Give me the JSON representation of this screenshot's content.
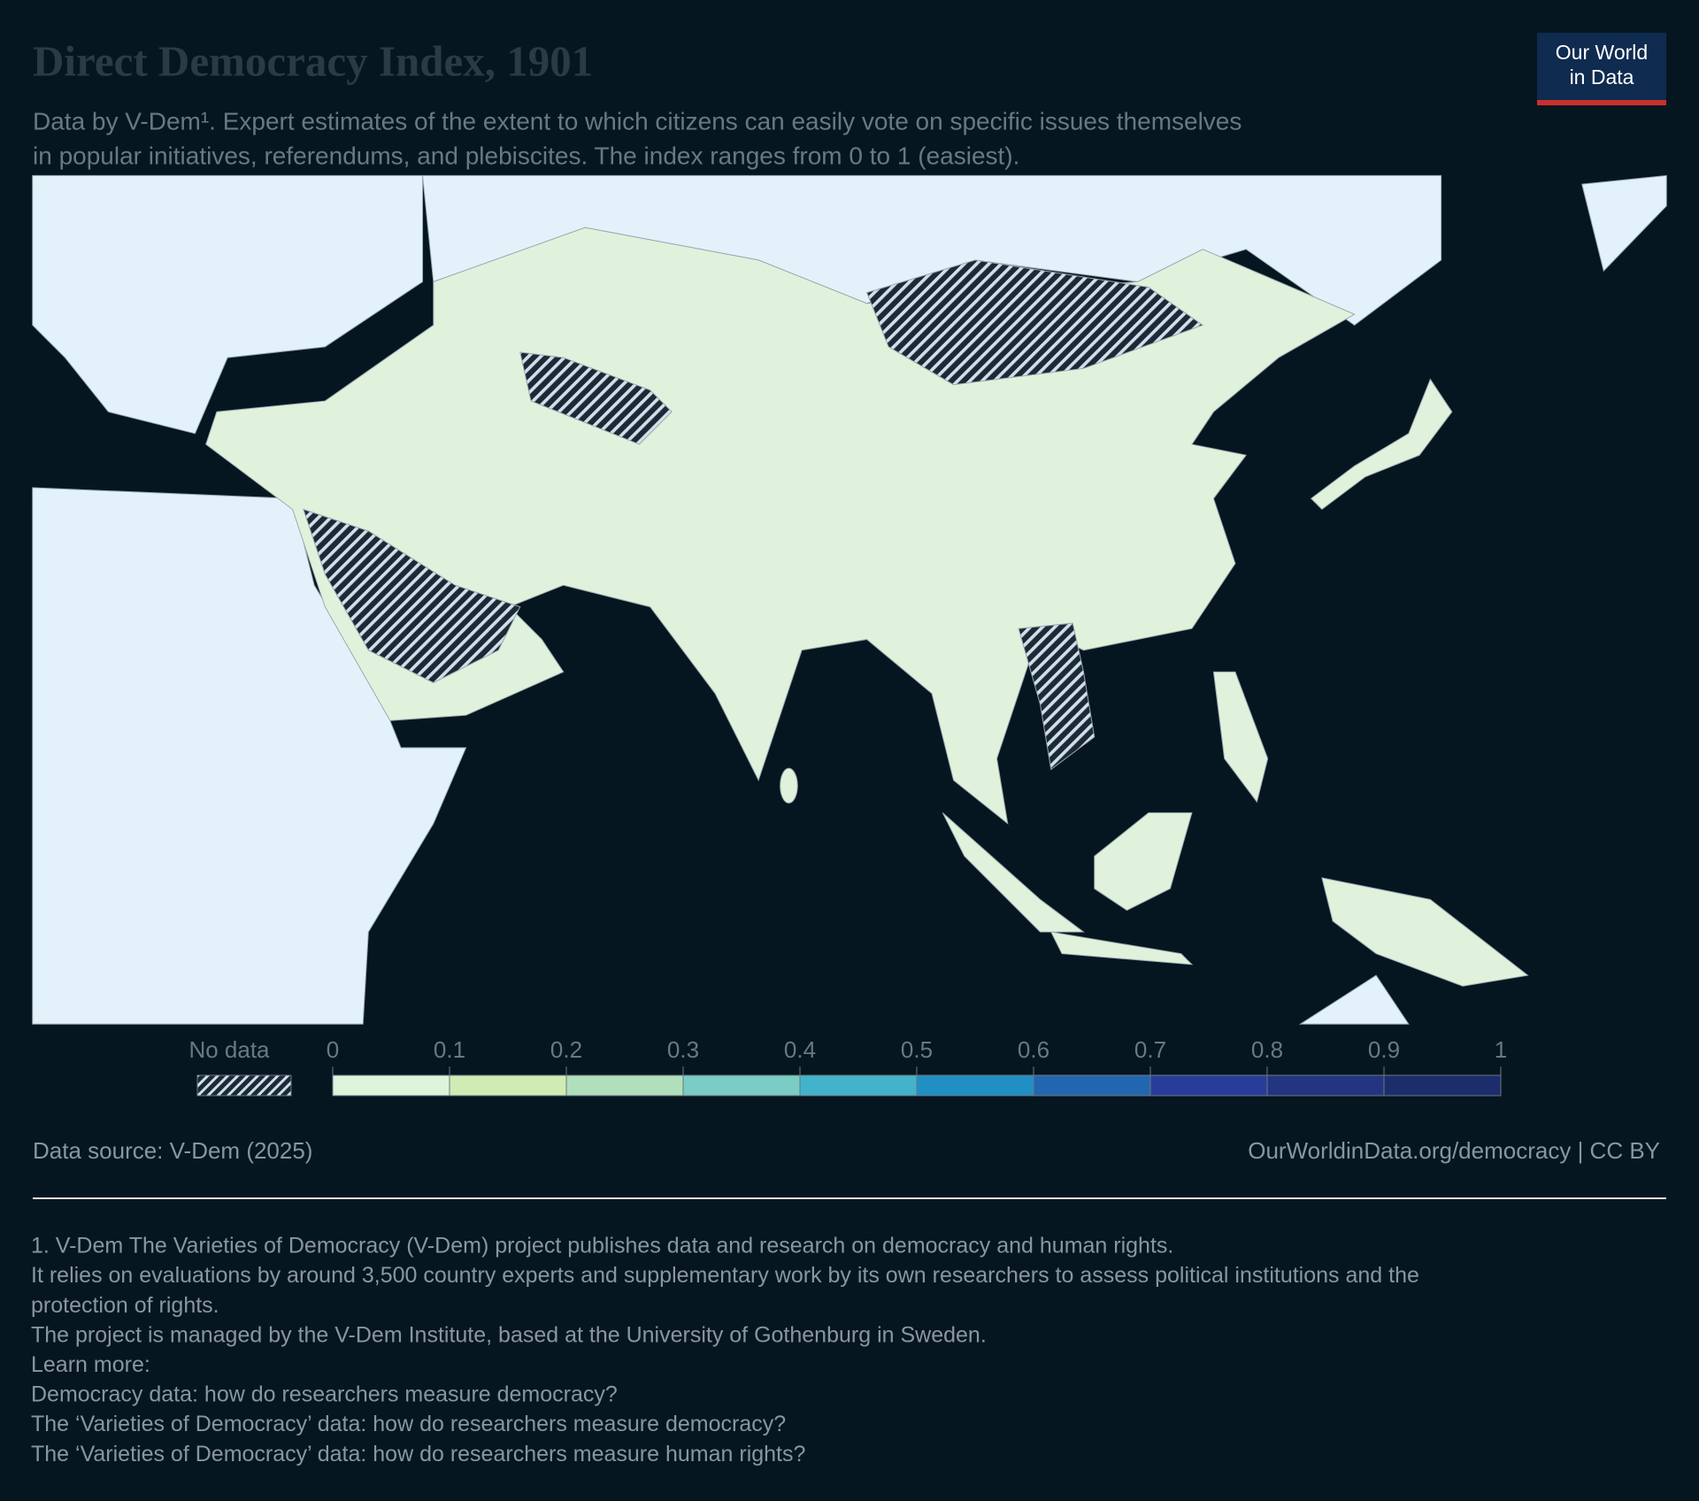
{
  "header": {
    "title": "Direct Democracy Index, 1901",
    "subtitle": [
      "Data by V-Dem¹. Expert estimates of the extent to which citizens can easily vote on specific issues themselves",
      "in popular initiatives, referendums, and plebiscites. The index ranges from 0 to 1 (easiest)."
    ],
    "logo": [
      "Our World",
      "in Data"
    ]
  },
  "legend": {
    "no_data": "No data",
    "ticks": [
      0,
      0.1,
      0.2,
      0.3,
      0.4,
      0.5,
      0.6,
      0.7,
      0.8,
      0.9,
      1
    ],
    "colors": [
      "#e0f3db",
      "#d0ecb4",
      "#b0dfbc",
      "#7accc4",
      "#42b3ca",
      "#1f8fc4",
      "#2266b0",
      "#283d9a",
      "#233581",
      "#1b2d6b"
    ]
  },
  "footer": {
    "source": "Data source: V-Dem (2025)",
    "url": "OurWorldinData.org/democracy | CC BY",
    "notes": [
      "1. V-Dem The Varieties of Democracy (V-Dem) project publishes data and research on democracy and human rights.",
      "It relies on evaluations by around 3,500 country experts and supplementary work by its own researchers to assess political institutions and the",
      "protection of rights.",
      "The project is managed by the V-Dem Institute, based at the University of Gothenburg in Sweden.",
      "Learn more:",
      "Democracy data: how do researchers measure democracy?",
      "The ‘Varieties of Democracy’ data: how do researchers measure democracy?",
      "The ‘Varieties of Democracy’ data: how do researchers measure human rights?"
    ]
  }
}
